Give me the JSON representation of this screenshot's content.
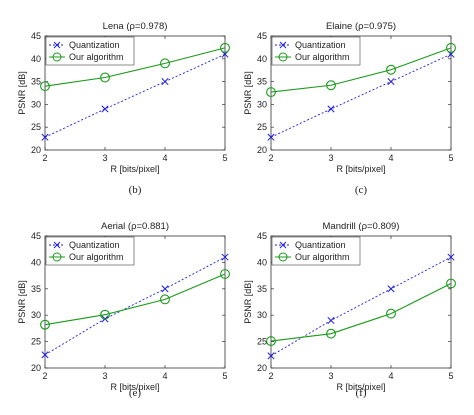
{
  "chart_data": [
    {
      "type": "line",
      "title": "Lena (ρ=0.978)",
      "caption": "(b)",
      "xlabel": "R [bits/pixel]",
      "ylabel": "PSNR [dB]",
      "x": [
        2,
        3,
        4,
        5
      ],
      "xlim": [
        2,
        5
      ],
      "ylim": [
        20,
        45
      ],
      "xticks": [
        "2",
        "3",
        "4",
        "5"
      ],
      "yticks": [
        "20",
        "25",
        "30",
        "35",
        "40",
        "45"
      ],
      "legend_position": "top-left",
      "grid": false,
      "series": [
        {
          "name": "Quantization",
          "values": [
            22.8,
            29.0,
            35.0,
            41.0
          ],
          "color": "#1f1fe0",
          "marker": "x",
          "dash": true
        },
        {
          "name": "Our algorithm",
          "values": [
            34.0,
            35.9,
            39.0,
            42.4
          ],
          "color": "#1a9a1a",
          "marker": "o",
          "dash": false
        }
      ]
    },
    {
      "type": "line",
      "title": "Elaine (ρ=0.975)",
      "caption": "(c)",
      "xlabel": "R [bits/pixel]",
      "ylabel": "PSNR [dB]",
      "x": [
        2,
        3,
        4,
        5
      ],
      "xlim": [
        2,
        5
      ],
      "ylim": [
        20,
        45
      ],
      "xticks": [
        "2",
        "3",
        "4",
        "5"
      ],
      "yticks": [
        "20",
        "25",
        "30",
        "35",
        "40",
        "45"
      ],
      "legend_position": "top-left",
      "grid": false,
      "series": [
        {
          "name": "Quantization",
          "values": [
            22.8,
            29.0,
            35.0,
            41.0
          ],
          "color": "#1f1fe0",
          "marker": "x",
          "dash": true
        },
        {
          "name": "Our algorithm",
          "values": [
            32.7,
            34.2,
            37.6,
            42.4
          ],
          "color": "#1a9a1a",
          "marker": "o",
          "dash": false
        }
      ]
    },
    {
      "type": "line",
      "title": "Aerial (ρ=0.881)",
      "caption": "(e)",
      "xlabel": "R [bits/pixel]",
      "ylabel": "PSNR [dB]",
      "x": [
        2,
        3,
        4,
        5
      ],
      "xlim": [
        2,
        5
      ],
      "ylim": [
        20,
        45
      ],
      "xticks": [
        "2",
        "3",
        "4",
        "5"
      ],
      "yticks": [
        "20",
        "25",
        "30",
        "35",
        "40",
        "45"
      ],
      "legend_position": "top-left",
      "grid": false,
      "series": [
        {
          "name": "Quantization",
          "values": [
            22.5,
            29.3,
            35.0,
            41.0
          ],
          "color": "#1f1fe0",
          "marker": "x",
          "dash": true
        },
        {
          "name": "Our algorithm",
          "values": [
            28.2,
            30.1,
            33.0,
            37.8
          ],
          "color": "#1a9a1a",
          "marker": "o",
          "dash": false
        }
      ]
    },
    {
      "type": "line",
      "title": "Mandrill (ρ=0.809)",
      "caption": "(f)",
      "xlabel": "R [bits/pixel]",
      "ylabel": "PSNR [dB]",
      "x": [
        2,
        3,
        4,
        5
      ],
      "xlim": [
        2,
        5
      ],
      "ylim": [
        20,
        45
      ],
      "xticks": [
        "2",
        "3",
        "4",
        "5"
      ],
      "yticks": [
        "20",
        "25",
        "30",
        "35",
        "40",
        "45"
      ],
      "legend_position": "top-left",
      "grid": false,
      "series": [
        {
          "name": "Quantization",
          "values": [
            22.3,
            29.0,
            35.0,
            41.0
          ],
          "color": "#1f1fe0",
          "marker": "x",
          "dash": true
        },
        {
          "name": "Our algorithm",
          "values": [
            25.1,
            26.5,
            30.3,
            36.0
          ],
          "color": "#1a9a1a",
          "marker": "o",
          "dash": false
        }
      ]
    }
  ]
}
